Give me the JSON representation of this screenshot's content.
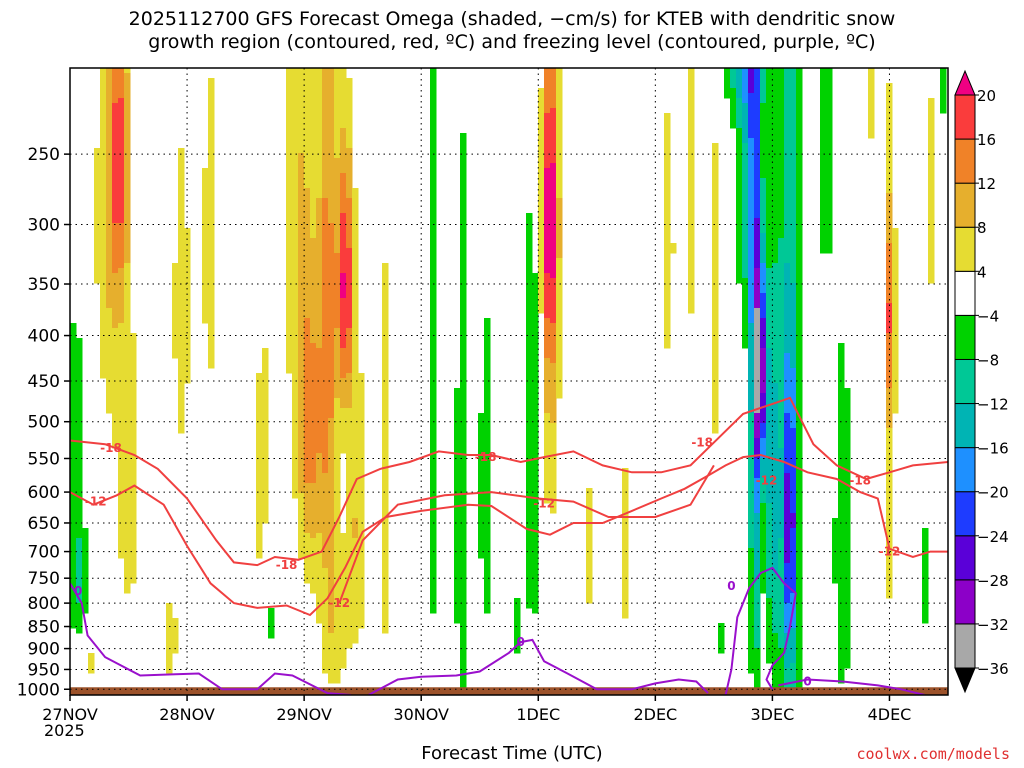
{
  "title": {
    "line1": "2025112700 GFS Forecast Omega (shaded, −cm/s) for KTEB with dendritic snow",
    "line2": "growth region (contoured, red, ºC) and freezing level (contoured, purple, ºC)"
  },
  "credit": "coolwx.com/models",
  "colors": {
    "dgz_contour": "#f04040",
    "freezing_contour": "#9a10cc",
    "terrain": "#9c522a",
    "gridline": "#000000"
  },
  "chart_data": {
    "type": "heatmap",
    "xlabel": "Forecast Time (UTC)",
    "ylabel": "",
    "x_ticks": [
      "27NOV",
      "28NOV",
      "29NOV",
      "30NOV",
      "1DEC",
      "2DEC",
      "3DEC",
      "4DEC"
    ],
    "x_year": "2025",
    "x_range_days": [
      0,
      7.5
    ],
    "y_ticks": [
      250,
      300,
      350,
      400,
      450,
      500,
      550,
      600,
      650,
      700,
      750,
      800,
      850,
      900,
      950,
      1000
    ],
    "y_range_hpa": [
      200,
      1015
    ],
    "y_scale": "log-pressure",
    "colorbar": {
      "levels": [
        -36,
        -32,
        -28,
        -24,
        -20,
        -16,
        -12,
        -8,
        -4,
        4,
        8,
        12,
        16,
        20
      ],
      "label_levels": [
        -36,
        -32,
        -28,
        -24,
        -20,
        -16,
        -12,
        -8,
        -4,
        4,
        8,
        12,
        16,
        20
      ],
      "colors": [
        "#000000",
        "#a8a8a8",
        "#8c00c8",
        "#5a00d8",
        "#1e3cff",
        "#1e90ff",
        "#00b4b4",
        "#00c896",
        "#00d200",
        "#ffffff",
        "#e6dc32",
        "#e6af2d",
        "#f08228",
        "#fa3c3c",
        "#f00082"
      ]
    },
    "omega_blobs": [
      {
        "day": 0.05,
        "p": 520,
        "dd": 0.07,
        "dp": 260,
        "v": -6
      },
      {
        "day": 0.08,
        "p": 770,
        "dd": 0.09,
        "dp": 140,
        "v": -7
      },
      {
        "day": 0.35,
        "p": 300,
        "dd": 0.15,
        "dp": 200,
        "v": 8
      },
      {
        "day": 0.42,
        "p": 250,
        "dd": 0.08,
        "dp": 90,
        "v": 13
      },
      {
        "day": 0.5,
        "p": 620,
        "dd": 0.12,
        "dp": 260,
        "v": 6
      },
      {
        "day": 0.18,
        "p": 930,
        "dd": 0.1,
        "dp": 90,
        "v": 5
      },
      {
        "day": 0.95,
        "p": 380,
        "dd": 0.12,
        "dp": 280,
        "v": 5
      },
      {
        "day": 0.85,
        "p": 880,
        "dd": 0.08,
        "dp": 120,
        "v": 6
      },
      {
        "day": 1.2,
        "p": 320,
        "dd": 0.1,
        "dp": 240,
        "v": 5
      },
      {
        "day": 1.65,
        "p": 600,
        "dd": 0.1,
        "dp": 300,
        "v": 6
      },
      {
        "day": 1.7,
        "p": 820,
        "dd": 0.06,
        "dp": 160,
        "v": -7
      },
      {
        "day": 1.95,
        "p": 300,
        "dd": 0.12,
        "dp": 280,
        "v": 7
      },
      {
        "day": 2.05,
        "p": 520,
        "dd": 0.1,
        "dp": 220,
        "v": 12
      },
      {
        "day": 2.2,
        "p": 400,
        "dd": 0.08,
        "dp": 300,
        "v": 14
      },
      {
        "day": 2.35,
        "p": 350,
        "dd": 0.07,
        "dp": 120,
        "v": 20
      },
      {
        "day": 2.45,
        "p": 650,
        "dd": 0.1,
        "dp": 260,
        "v": 8
      },
      {
        "day": 2.25,
        "p": 850,
        "dd": 0.12,
        "dp": 180,
        "v": 7
      },
      {
        "day": 2.7,
        "p": 600,
        "dd": 0.06,
        "dp": 600,
        "v": 5
      },
      {
        "day": 3.1,
        "p": 500,
        "dd": 0.05,
        "dp": 500,
        "v": -6
      },
      {
        "day": 3.35,
        "p": 650,
        "dd": 0.06,
        "dp": 500,
        "v": -8
      },
      {
        "day": 3.55,
        "p": 600,
        "dd": 0.06,
        "dp": 300,
        "v": -7
      },
      {
        "day": 3.95,
        "p": 550,
        "dd": 0.08,
        "dp": 350,
        "v": -8
      },
      {
        "day": 3.8,
        "p": 850,
        "dd": 0.05,
        "dp": 100,
        "v": -6
      },
      {
        "day": 4.1,
        "p": 290,
        "dd": 0.07,
        "dp": 120,
        "v": 18
      },
      {
        "day": 4.1,
        "p": 420,
        "dd": 0.08,
        "dp": 260,
        "v": 9
      },
      {
        "day": 4.35,
        "p": 400,
        "dd": 0.05,
        "dp": 450,
        "v": 4.5
      },
      {
        "day": 4.45,
        "p": 700,
        "dd": 0.05,
        "dp": 250,
        "v": 5
      },
      {
        "day": 4.75,
        "p": 700,
        "dd": 0.07,
        "dp": 300,
        "v": 5
      },
      {
        "day": 5.1,
        "p": 320,
        "dd": 0.08,
        "dp": 150,
        "v": 6
      },
      {
        "day": 5.3,
        "p": 280,
        "dd": 0.05,
        "dp": 150,
        "v": 6
      },
      {
        "day": 5.5,
        "p": 390,
        "dd": 0.08,
        "dp": 400,
        "v": 5
      },
      {
        "day": 5.55,
        "p": 850,
        "dd": 0.05,
        "dp": 250,
        "v": -5
      },
      {
        "day": 5.75,
        "p": 200,
        "dd": 0.2,
        "dp": 30,
        "v": -9
      },
      {
        "day": 5.8,
        "p": 260,
        "dd": 0.1,
        "dp": 150,
        "v": -12
      },
      {
        "day": 5.85,
        "p": 500,
        "dd": 0.04,
        "dp": 500,
        "v": -18
      },
      {
        "day": 5.9,
        "p": 440,
        "dd": 0.05,
        "dp": 120,
        "v": -28
      },
      {
        "day": 6.0,
        "p": 600,
        "dd": 0.08,
        "dp": 300,
        "v": -12
      },
      {
        "day": 6.15,
        "p": 650,
        "dd": 0.04,
        "dp": 250,
        "v": -22
      },
      {
        "day": 6.15,
        "p": 600,
        "dd": 0.12,
        "dp": 800,
        "v": -10
      },
      {
        "day": 6.45,
        "p": 250,
        "dd": 0.1,
        "dp": 120,
        "v": -6
      },
      {
        "day": 6.6,
        "p": 700,
        "dd": 0.08,
        "dp": 350,
        "v": -8
      },
      {
        "day": 6.85,
        "p": 220,
        "dd": 0.06,
        "dp": 60,
        "v": 4.5
      },
      {
        "day": 7.0,
        "p": 520,
        "dd": 0.06,
        "dp": 420,
        "v": 6
      },
      {
        "day": 7.0,
        "p": 380,
        "dd": 0.04,
        "dp": 100,
        "v": 11
      },
      {
        "day": 7.35,
        "p": 280,
        "dd": 0.05,
        "dp": 150,
        "v": 5
      },
      {
        "day": 7.3,
        "p": 750,
        "dd": 0.05,
        "dp": 200,
        "v": -5
      },
      {
        "day": 7.45,
        "p": 200,
        "dd": 0.05,
        "dp": 40,
        "v": -6
      }
    ],
    "dendritic_contours": [
      {
        "label": "-18",
        "label_at": [
          0.35,
          535
        ],
        "points": [
          [
            0,
            525
          ],
          [
            0.3,
            530
          ],
          [
            0.55,
            545
          ],
          [
            0.75,
            565
          ],
          [
            1.0,
            610
          ],
          [
            1.25,
            680
          ],
          [
            1.4,
            720
          ],
          [
            1.6,
            725
          ],
          [
            1.75,
            710
          ],
          [
            1.95,
            715
          ],
          [
            2.15,
            700
          ],
          [
            2.3,
            640
          ],
          [
            2.45,
            580
          ],
          [
            2.65,
            565
          ],
          [
            2.9,
            555
          ],
          [
            3.15,
            540
          ],
          [
            3.4,
            545
          ],
          [
            3.6,
            545
          ],
          [
            3.85,
            555
          ],
          [
            4.05,
            548
          ],
          [
            4.3,
            540
          ],
          [
            4.55,
            560
          ],
          [
            4.8,
            570
          ],
          [
            5.05,
            570
          ],
          [
            5.3,
            560
          ],
          [
            5.55,
            520
          ],
          [
            5.75,
            490
          ],
          [
            5.95,
            480
          ],
          [
            6.05,
            475
          ],
          [
            6.15,
            470
          ],
          [
            6.35,
            530
          ],
          [
            6.55,
            560
          ],
          [
            6.8,
            580
          ],
          [
            7.0,
            570
          ],
          [
            7.2,
            560
          ],
          [
            7.5,
            555
          ]
        ]
      },
      {
        "label": "-12",
        "label_at": [
          0.2,
          612
        ],
        "points": [
          [
            0,
            600
          ],
          [
            0.2,
            620
          ],
          [
            0.4,
            605
          ],
          [
            0.55,
            590
          ],
          [
            0.8,
            620
          ],
          [
            1.0,
            690
          ],
          [
            1.2,
            760
          ],
          [
            1.4,
            800
          ],
          [
            1.6,
            810
          ],
          [
            1.85,
            805
          ],
          [
            2.05,
            825
          ],
          [
            2.2,
            790
          ],
          [
            2.35,
            730
          ],
          [
            2.5,
            665
          ],
          [
            2.7,
            640
          ],
          [
            3.0,
            630
          ],
          [
            3.4,
            620
          ],
          [
            3.6,
            622
          ],
          [
            3.9,
            660
          ],
          [
            4.1,
            670
          ],
          [
            4.3,
            650
          ],
          [
            4.55,
            650
          ],
          [
            4.8,
            630
          ],
          [
            5.05,
            610
          ],
          [
            5.25,
            595
          ],
          [
            5.45,
            575
          ],
          [
            5.6,
            560
          ],
          [
            5.75,
            548
          ],
          [
            5.9,
            545
          ],
          [
            6.1,
            555
          ],
          [
            6.3,
            570
          ],
          [
            6.55,
            580
          ],
          [
            6.75,
            600
          ],
          [
            6.9,
            610
          ],
          [
            7.0,
            695
          ],
          [
            7.2,
            710
          ],
          [
            7.35,
            700
          ],
          [
            7.5,
            700
          ]
        ]
      },
      {
        "label": "-12",
        "label_at": [
          2.35,
          800
        ],
        "points": [
          [
            2.3,
            800
          ],
          [
            2.5,
            680
          ],
          [
            2.8,
            620
          ],
          [
            3.2,
            605
          ],
          [
            3.6,
            600
          ],
          [
            4.0,
            610
          ],
          [
            4.3,
            615
          ],
          [
            4.6,
            640
          ],
          [
            5.0,
            640
          ],
          [
            5.3,
            620
          ],
          [
            5.5,
            560
          ]
        ]
      }
    ],
    "dendritic_labels": [
      {
        "text": "-18",
        "day": 0.35,
        "p": 535
      },
      {
        "text": "-12",
        "day": 0.22,
        "p": 615
      },
      {
        "text": "-18",
        "day": 1.85,
        "p": 725
      },
      {
        "text": "-12",
        "day": 2.3,
        "p": 800
      },
      {
        "text": "-18",
        "day": 3.55,
        "p": 548
      },
      {
        "text": "-12",
        "day": 4.05,
        "p": 618
      },
      {
        "text": "-18",
        "day": 5.4,
        "p": 528
      },
      {
        "text": "-12",
        "day": 5.95,
        "p": 582
      },
      {
        "text": "-18",
        "day": 6.75,
        "p": 582
      },
      {
        "text": "-12",
        "day": 7.0,
        "p": 700
      }
    ],
    "freezing_contours": [
      {
        "label": "0",
        "points": [
          [
            0,
            760
          ],
          [
            0.1,
            800
          ],
          [
            0.15,
            870
          ],
          [
            0.3,
            920
          ],
          [
            0.6,
            965
          ],
          [
            0.9,
            962
          ],
          [
            1.1,
            960
          ],
          [
            1.3,
            1000
          ],
          [
            1.6,
            1000
          ],
          [
            1.75,
            960
          ],
          [
            1.9,
            965
          ],
          [
            2.2,
            1010
          ],
          [
            2.4,
            1015
          ]
        ]
      },
      {
        "label": "0",
        "points": [
          [
            2.55,
            1015
          ],
          [
            2.8,
            975
          ],
          [
            3.0,
            968
          ],
          [
            3.3,
            965
          ],
          [
            3.5,
            955
          ],
          [
            3.75,
            910
          ],
          [
            3.85,
            885
          ],
          [
            3.95,
            880
          ],
          [
            4.05,
            930
          ],
          [
            4.25,
            960
          ],
          [
            4.5,
            1000
          ],
          [
            4.8,
            1000
          ],
          [
            5.0,
            985
          ],
          [
            5.2,
            975
          ],
          [
            5.35,
            980
          ],
          [
            5.45,
            1010
          ]
        ]
      },
      {
        "label": "0",
        "points": [
          [
            5.6,
            1015
          ],
          [
            5.65,
            950
          ],
          [
            5.7,
            830
          ],
          [
            5.8,
            770
          ],
          [
            5.9,
            740
          ],
          [
            6.0,
            730
          ],
          [
            6.1,
            760
          ],
          [
            6.2,
            780
          ],
          [
            6.15,
            850
          ],
          [
            6.1,
            910
          ],
          [
            6.0,
            940
          ],
          [
            5.95,
            975
          ],
          [
            6.0,
            1000
          ]
        ]
      },
      {
        "label": "0",
        "points": [
          [
            6.05,
            990
          ],
          [
            6.3,
            975
          ],
          [
            6.6,
            980
          ],
          [
            6.9,
            990
          ],
          [
            7.1,
            1000
          ],
          [
            7.3,
            1015
          ]
        ]
      }
    ],
    "freezing_labels": [
      {
        "text": "0",
        "day": 0.07,
        "p": 775
      },
      {
        "text": "0",
        "day": 3.85,
        "p": 885
      },
      {
        "text": "0",
        "day": 5.65,
        "p": 765
      },
      {
        "text": "0",
        "day": 6.3,
        "p": 980
      }
    ],
    "terrain_top_hpa": 1000
  }
}
